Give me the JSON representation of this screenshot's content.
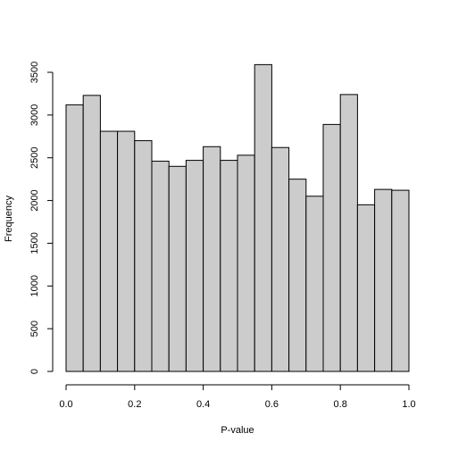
{
  "chart_data": {
    "type": "bar",
    "title": "",
    "xlabel": "P-value",
    "ylabel": "Frequency",
    "bin_edges": [
      0.0,
      0.05,
      0.1,
      0.15,
      0.2,
      0.25,
      0.3,
      0.35,
      0.4,
      0.45,
      0.5,
      0.55,
      0.6,
      0.65,
      0.7,
      0.75,
      0.8,
      0.85,
      0.9,
      0.95,
      1.0
    ],
    "values": [
      3120,
      3230,
      2810,
      2810,
      2700,
      2460,
      2400,
      2470,
      2630,
      2470,
      2530,
      3590,
      2620,
      2250,
      2050,
      2890,
      3240,
      1950,
      2130,
      2120
    ],
    "xlim": [
      0,
      1
    ],
    "ylim": [
      0,
      3600
    ],
    "xticks": [
      0.0,
      0.2,
      0.4,
      0.6,
      0.8,
      1.0
    ],
    "xtick_labels": [
      "0.0",
      "0.2",
      "0.4",
      "0.6",
      "0.8",
      "1.0"
    ],
    "yticks": [
      0,
      500,
      1000,
      1500,
      2000,
      2500,
      3000,
      3500
    ],
    "ytick_labels": [
      "0",
      "500",
      "1000",
      "1500",
      "2000",
      "2500",
      "3000",
      "3500"
    ],
    "grid": false,
    "bar_color": "#cccccc",
    "edge_color": "#000000"
  }
}
